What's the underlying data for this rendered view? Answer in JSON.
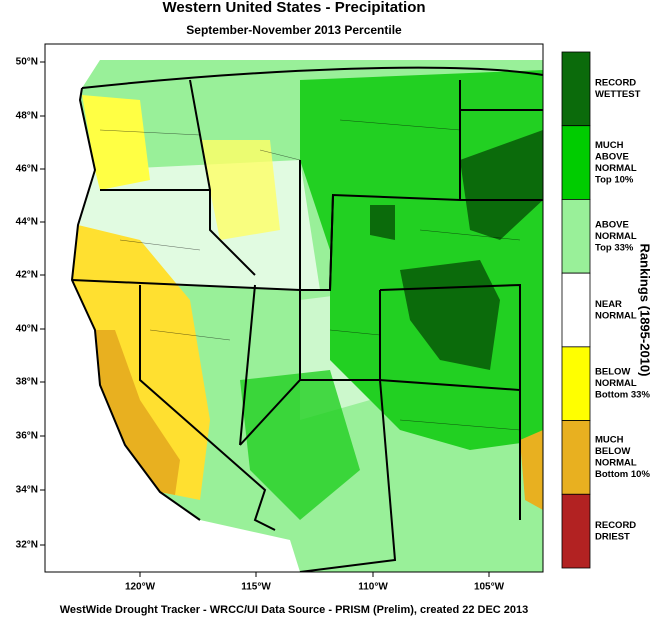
{
  "header": {
    "title": "Western United States - Precipitation",
    "subtitle": "September-November 2013 Percentile"
  },
  "map": {
    "lat_labels": [
      "50°N",
      "48°N",
      "46°N",
      "44°N",
      "42°N",
      "40°N",
      "38°N",
      "36°N",
      "34°N",
      "32°N"
    ],
    "lon_labels": [
      "120°W",
      "115°W",
      "110°W",
      "105°W"
    ]
  },
  "legend": {
    "title": "Rankings (1895-2010)",
    "items": [
      {
        "lines": [
          "RECORD",
          "WETTEST"
        ],
        "color": "#0b6b0b"
      },
      {
        "lines": [
          "MUCH",
          "ABOVE",
          "NORMAL",
          "Top 10%"
        ],
        "color": "#00cc00"
      },
      {
        "lines": [
          "ABOVE",
          "NORMAL",
          "Top 33%"
        ],
        "color": "#99f099"
      },
      {
        "lines": [
          "NEAR",
          "NORMAL"
        ],
        "color": "#ffffff"
      },
      {
        "lines": [
          "BELOW",
          "NORMAL",
          "Bottom 33%"
        ],
        "color": "#ffff00"
      },
      {
        "lines": [
          "MUCH",
          "BELOW",
          "NORMAL",
          "Bottom 10%"
        ],
        "color": "#e8b020"
      },
      {
        "lines": [
          "RECORD",
          "DRIEST"
        ],
        "color": "#b22222"
      }
    ]
  },
  "footer": "WestWide Drought Tracker - WRCC/UI  Data Source - PRISM (Prelim), created 22 DEC 2013"
}
